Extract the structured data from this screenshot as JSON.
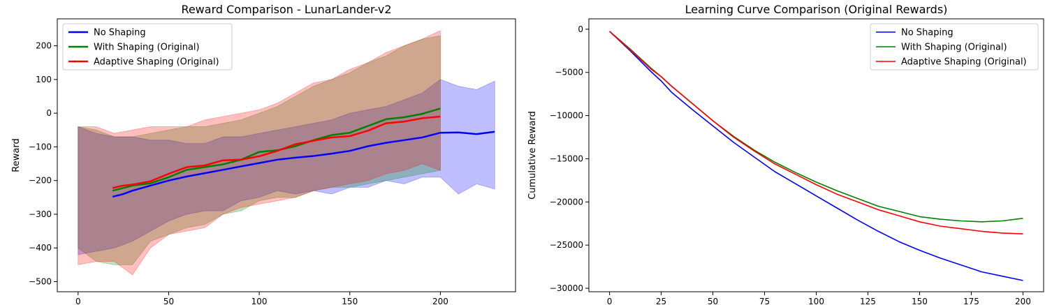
{
  "chart_data": [
    {
      "type": "line",
      "title": "Reward Comparison - LunarLander-v2",
      "xlabel": "",
      "ylabel": "Reward",
      "xlim": [
        -11.5,
        241.5
      ],
      "ylim": [
        -530,
        280
      ],
      "xticks": [
        0,
        50,
        100,
        150,
        200
      ],
      "yticks": [
        -500,
        -400,
        -300,
        -200,
        -100,
        0,
        100,
        200
      ],
      "grid": false,
      "legend_position": "top-left",
      "series": [
        {
          "name": "No Shaping",
          "color": "#0000ff",
          "x_start": 19,
          "moving_average": {
            "x": [
              19,
              25,
              30,
              40,
              50,
              60,
              70,
              80,
              90,
              100,
              110,
              120,
              130,
              140,
              150,
              160,
              170,
              180,
              190,
              200,
              210,
              220,
              230
            ],
            "y": [
              -248,
              -240,
              -230,
              -215,
              -200,
              -188,
              -178,
              -168,
              -158,
              -148,
              -138,
              -132,
              -127,
              -120,
              -112,
              -98,
              -88,
              -80,
              -72,
              -58,
              -57,
              -62,
              -55
            ]
          },
          "band_x": [
            0,
            10,
            20,
            30,
            40,
            50,
            60,
            70,
            80,
            90,
            100,
            110,
            120,
            130,
            140,
            150,
            160,
            170,
            180,
            190,
            200,
            210,
            220,
            230
          ],
          "band_upper": [
            -40,
            -60,
            -70,
            -70,
            -80,
            -80,
            -90,
            -90,
            -70,
            -70,
            -60,
            -50,
            -40,
            -30,
            -20,
            0,
            10,
            20,
            40,
            60,
            100,
            80,
            70,
            95
          ],
          "band_lower": [
            -420,
            -410,
            -400,
            -380,
            -350,
            -320,
            -300,
            -290,
            -290,
            -260,
            -250,
            -230,
            -240,
            -230,
            -240,
            -220,
            -220,
            -200,
            -210,
            -190,
            -190,
            -240,
            -210,
            -225
          ]
        },
        {
          "name": "With Shaping (Original)",
          "color": "#008000",
          "x_start": 19,
          "moving_average": {
            "x": [
              19,
              25,
              30,
              40,
              50,
              60,
              70,
              80,
              90,
              100,
              110,
              120,
              130,
              140,
              150,
              160,
              170,
              180,
              190,
              200
            ],
            "y": [
              -230,
              -222,
              -215,
              -208,
              -190,
              -168,
              -160,
              -152,
              -138,
              -115,
              -110,
              -98,
              -80,
              -65,
              -58,
              -38,
              -18,
              -12,
              -2,
              14
            ]
          },
          "band_x": [
            0,
            10,
            20,
            30,
            40,
            50,
            60,
            70,
            80,
            90,
            100,
            110,
            120,
            130,
            140,
            150,
            160,
            170,
            180,
            190,
            200
          ],
          "band_upper": [
            -40,
            -50,
            -70,
            -70,
            -60,
            -50,
            -40,
            -40,
            -30,
            -20,
            0,
            20,
            50,
            80,
            100,
            120,
            150,
            170,
            200,
            220,
            230
          ],
          "band_lower": [
            -400,
            -440,
            -450,
            -450,
            -380,
            -360,
            -340,
            -330,
            -300,
            -290,
            -260,
            -250,
            -250,
            -230,
            -220,
            -220,
            -210,
            -200,
            -190,
            -180,
            -170
          ]
        },
        {
          "name": "Adaptive Shaping (Original)",
          "color": "#ff0000",
          "x_start": 19,
          "moving_average": {
            "x": [
              19,
              25,
              30,
              40,
              50,
              60,
              70,
              80,
              90,
              100,
              110,
              120,
              130,
              140,
              150,
              160,
              170,
              180,
              190,
              200
            ],
            "y": [
              -222,
              -215,
              -212,
              -202,
              -180,
              -160,
              -155,
              -140,
              -138,
              -128,
              -112,
              -92,
              -82,
              -72,
              -68,
              -52,
              -30,
              -25,
              -15,
              -10
            ]
          },
          "band_x": [
            0,
            10,
            20,
            30,
            40,
            50,
            60,
            70,
            80,
            90,
            100,
            110,
            120,
            130,
            140,
            150,
            160,
            170,
            180,
            190,
            200
          ],
          "band_upper": [
            -40,
            -40,
            -60,
            -50,
            -40,
            -40,
            -40,
            -20,
            -10,
            0,
            10,
            30,
            60,
            90,
            100,
            130,
            150,
            180,
            200,
            220,
            245
          ],
          "band_lower": [
            -450,
            -440,
            -440,
            -480,
            -400,
            -360,
            -350,
            -340,
            -300,
            -280,
            -270,
            -260,
            -250,
            -230,
            -220,
            -210,
            -200,
            -180,
            -170,
            -150,
            -170
          ]
        }
      ]
    },
    {
      "type": "line",
      "title": "Learning Curve Comparison (Original Rewards)",
      "xlabel": "",
      "ylabel": "Cumulative Reward",
      "xlim": [
        -10,
        210
      ],
      "ylim": [
        -30400,
        1200
      ],
      "xticks": [
        0,
        25,
        50,
        75,
        100,
        125,
        150,
        175,
        200
      ],
      "yticks": [
        0,
        -5000,
        -10000,
        -15000,
        -20000,
        -25000,
        -30000
      ],
      "grid": false,
      "legend_position": "top-right",
      "series": [
        {
          "name": "No Shaping",
          "color": "#0000ff",
          "x": [
            0,
            10,
            20,
            25,
            30,
            40,
            50,
            60,
            70,
            80,
            90,
            100,
            110,
            120,
            130,
            140,
            150,
            160,
            170,
            180,
            190,
            200
          ],
          "y": [
            -250,
            -2500,
            -4900,
            -6000,
            -7300,
            -9300,
            -11200,
            -13100,
            -14800,
            -16500,
            -17900,
            -19300,
            -20700,
            -22100,
            -23400,
            -24600,
            -25600,
            -26500,
            -27300,
            -28100,
            -28600,
            -29100
          ]
        },
        {
          "name": "With Shaping (Original)",
          "color": "#008000",
          "x": [
            0,
            10,
            20,
            25,
            30,
            40,
            50,
            60,
            70,
            80,
            90,
            100,
            110,
            120,
            130,
            140,
            150,
            160,
            170,
            180,
            190,
            200
          ],
          "y": [
            -250,
            -2300,
            -4500,
            -5500,
            -6600,
            -8600,
            -10600,
            -12400,
            -14000,
            -15400,
            -16600,
            -17700,
            -18700,
            -19600,
            -20500,
            -21100,
            -21700,
            -22000,
            -22200,
            -22300,
            -22200,
            -21900
          ]
        },
        {
          "name": "Adaptive Shaping (Original)",
          "color": "#ff0000",
          "x": [
            0,
            10,
            20,
            25,
            30,
            40,
            50,
            60,
            70,
            80,
            90,
            100,
            110,
            120,
            130,
            140,
            150,
            160,
            170,
            180,
            190,
            200
          ],
          "y": [
            -250,
            -2400,
            -4600,
            -5500,
            -6600,
            -8600,
            -10600,
            -12500,
            -14100,
            -15600,
            -16800,
            -18000,
            -19100,
            -20000,
            -20900,
            -21600,
            -22300,
            -22800,
            -23100,
            -23400,
            -23600,
            -23700
          ]
        }
      ]
    }
  ]
}
